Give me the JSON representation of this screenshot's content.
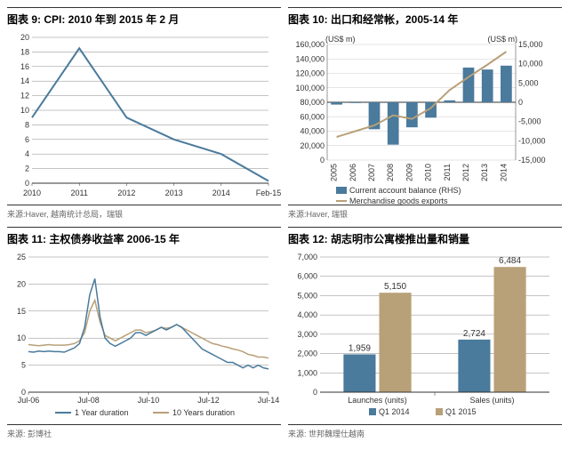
{
  "chart9": {
    "title": "图表 9: CPI: 2010 年到 2015 年 2 月",
    "source": "来源:Haver, 越南统计总局，瑞银",
    "type": "line",
    "x_labels": [
      "2010",
      "2011",
      "2012",
      "2013",
      "2014",
      "Feb-15"
    ],
    "y_ticks": [
      0,
      2,
      4,
      6,
      8,
      10,
      12,
      14,
      16,
      18,
      20
    ],
    "ylim": [
      0,
      20
    ],
    "values": [
      9,
      18.5,
      9,
      6,
      4,
      0.3
    ],
    "line_color": "#4a7a9c",
    "line_width": 2,
    "grid_color": "#888888",
    "background_color": "#ffffff"
  },
  "chart10": {
    "title": "图表 10: 出口和经常帐，2005-14 年",
    "source": "来源:Haver, 瑞银",
    "type": "combo",
    "left_axis_label": "(US$ m)",
    "right_axis_label": "(US$ m)",
    "x_labels": [
      "2005",
      "2006",
      "2007",
      "2008",
      "2009",
      "2010",
      "2011",
      "2012",
      "2013",
      "2014"
    ],
    "left_ticks": [
      0,
      20000,
      40000,
      60000,
      80000,
      100000,
      120000,
      140000,
      160000
    ],
    "right_ticks": [
      -15000,
      -10000,
      -5000,
      0,
      5000,
      10000,
      15000
    ],
    "left_ylim": [
      0,
      160000
    ],
    "right_ylim": [
      -15000,
      15000
    ],
    "bars": [
      -600,
      -200,
      -7000,
      -11000,
      -6500,
      -4000,
      500,
      9000,
      8500,
      9500
    ],
    "line": [
      32000,
      40000,
      48000,
      62000,
      57000,
      72000,
      97000,
      115000,
      132000,
      150000
    ],
    "bar_color": "#4a7a9c",
    "line_color": "#b8a078",
    "line_width": 2,
    "zero_line_color": "#333333",
    "legend": {
      "bars": "Current account balance (RHS)",
      "line": "Merchandise goods exports"
    }
  },
  "chart11": {
    "title": "图表 11: 主权债券收益率 2006-15 年",
    "source": "来源: 彭博社",
    "type": "line",
    "x_labels": [
      "Jul-06",
      "Jul-08",
      "Jul-10",
      "Jul-12",
      "Jul-14"
    ],
    "y_ticks": [
      0,
      5,
      10,
      15,
      20,
      25
    ],
    "ylim": [
      0,
      25
    ],
    "series1_color": "#4a7a9c",
    "series2_color": "#b8a078",
    "line_width": 1.5,
    "legend": {
      "s1": "1 Year duration",
      "s2": "10 Years duration"
    },
    "series1": [
      7.5,
      7.4,
      7.6,
      7.5,
      7.6,
      7.5,
      7.5,
      7.4,
      7.8,
      8.2,
      9.0,
      12,
      18,
      21,
      14,
      10,
      9,
      8.5,
      9,
      9.5,
      10,
      11,
      11,
      10.5,
      11,
      11.5,
      12,
      11.5,
      12,
      12.5,
      12,
      11,
      10,
      9,
      8,
      7.5,
      7,
      6.5,
      6,
      5.5,
      5.5,
      5,
      4.5,
      5,
      4.5,
      5,
      4.5,
      4.3
    ],
    "series2": [
      8.8,
      8.7,
      8.6,
      8.7,
      8.8,
      8.7,
      8.7,
      8.7,
      8.8,
      9.0,
      9.5,
      11,
      15,
      17,
      13,
      10.5,
      10,
      9.5,
      10,
      10.5,
      11,
      11.5,
      11.5,
      11,
      11.2,
      11.5,
      12,
      11.8,
      12,
      12.5,
      12,
      11.5,
      11,
      10.5,
      10,
      9.5,
      9,
      8.8,
      8.5,
      8.3,
      8,
      7.8,
      7.5,
      7,
      6.8,
      6.5,
      6.5,
      6.3
    ]
  },
  "chart12": {
    "title": "图表 12: 胡志明市公寓楼推出量和销量",
    "source": "来源: 世邦魏理仕越南",
    "type": "bar-grouped",
    "categories": [
      "Launches (units)",
      "Sales (units)"
    ],
    "y_ticks": [
      0,
      1000,
      2000,
      3000,
      4000,
      5000,
      6000,
      7000
    ],
    "ylim": [
      0,
      7000
    ],
    "series": {
      "s1": {
        "label": "Q1 2014",
        "color": "#4a7a9c",
        "values": [
          1959,
          2724
        ]
      },
      "s2": {
        "label": "Q1 2015",
        "color": "#b8a078",
        "values": [
          5150,
          6484
        ]
      }
    },
    "data_labels": [
      [
        "1,959",
        "5,150"
      ],
      [
        "2,724",
        "6,484"
      ]
    ],
    "grid_color": "#888888"
  }
}
